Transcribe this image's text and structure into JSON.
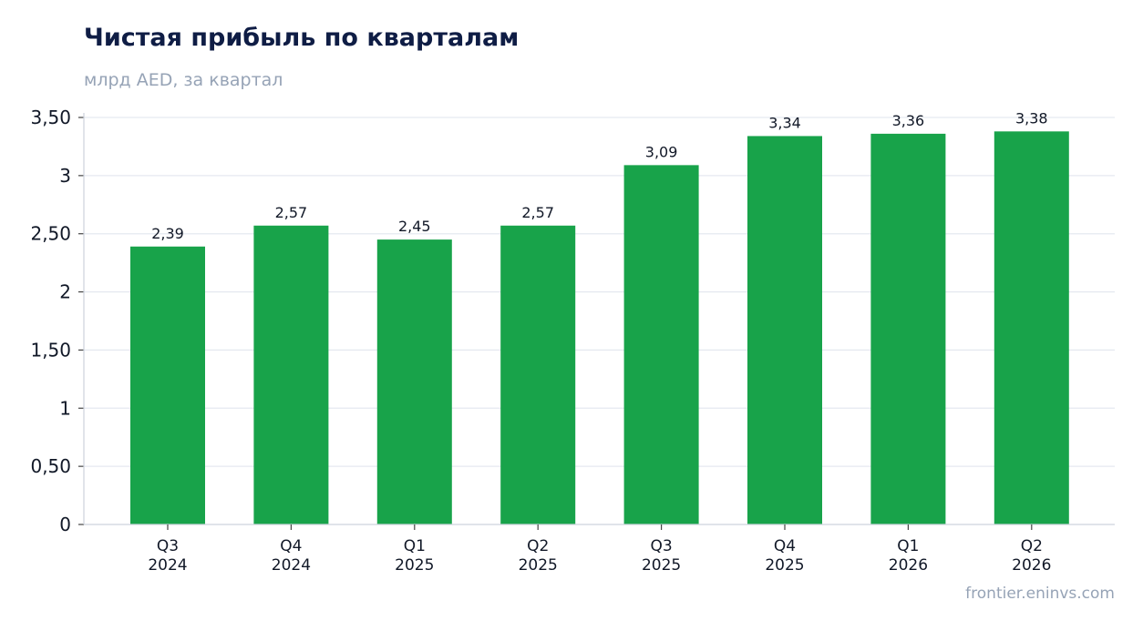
{
  "chart_data": {
    "type": "bar",
    "title": "Чистая прибыль по кварталам",
    "subtitle": "млрд AED, за квартал",
    "categories": [
      [
        "Q3",
        "2024"
      ],
      [
        "Q4",
        "2024"
      ],
      [
        "Q1",
        "2025"
      ],
      [
        "Q2",
        "2025"
      ],
      [
        "Q3",
        "2025"
      ],
      [
        "Q4",
        "2025"
      ],
      [
        "Q1",
        "2026"
      ],
      [
        "Q2",
        "2026"
      ]
    ],
    "values": [
      2.39,
      2.57,
      2.45,
      2.57,
      3.09,
      3.34,
      3.36,
      3.38
    ],
    "value_labels": [
      "2,39",
      "2,57",
      "2,45",
      "2,57",
      "3,09",
      "3,34",
      "3,36",
      "3,38"
    ],
    "yticks": [
      0,
      0.5,
      1,
      1.5,
      2,
      2.5,
      3,
      3.5
    ],
    "ytick_labels": [
      "0",
      "0,50",
      "1",
      "1,50",
      "2",
      "2,50",
      "3",
      "3,50"
    ],
    "ylim": [
      0,
      3.5
    ],
    "grid": true,
    "legend": "none",
    "bar_color": "#18a34a",
    "grid_color": "#e5e9f0",
    "axis_color": "#cdd3dd",
    "tick_label_color": "#111827"
  },
  "source_text": "frontier.eninvs.com"
}
